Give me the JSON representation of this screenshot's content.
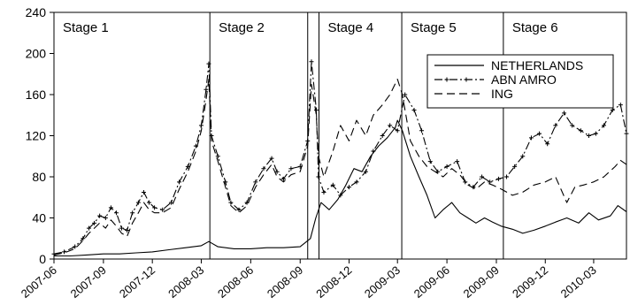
{
  "chart_data": {
    "type": "line",
    "title": "",
    "xlabel": "",
    "ylabel": "",
    "x_range": [
      "2007-06",
      "2010-05"
    ],
    "ylim": [
      0,
      240
    ],
    "y_ticks": [
      0,
      40,
      80,
      120,
      160,
      200,
      240
    ],
    "x_ticks": [
      "2007-06",
      "2007-09",
      "2007-12",
      "2008-03",
      "2008-06",
      "2008-09",
      "2008-12",
      "2009-03",
      "2009-06",
      "2009-09",
      "2009-12",
      "2010-03"
    ],
    "grid": false,
    "legend": {
      "position": "top-right",
      "entries": [
        "NETHERLANDS",
        "ABN AMRO",
        "ING"
      ]
    },
    "stages": [
      {
        "label": "Stage 1",
        "start": "2007-06",
        "end": "2008-03-17"
      },
      {
        "label": "Stage 2",
        "start": "2008-03-17",
        "end": "2008-09-15"
      },
      {
        "label": "",
        "start": "2008-09-15",
        "end": "2008-10-06"
      },
      {
        "label": "Stage 4",
        "start": "2008-10-06",
        "end": "2009-03-09"
      },
      {
        "label": "Stage 5",
        "start": "2009-03-09",
        "end": "2009-09-14"
      },
      {
        "label": "Stage 6",
        "start": "2009-09-14",
        "end": "2010-05"
      }
    ],
    "stage_boundaries": [
      "2008-03-17",
      "2008-09-15",
      "2008-10-06",
      "2009-03-09",
      "2009-09-14"
    ],
    "series": [
      {
        "name": "NETHERLANDS",
        "style": "solid",
        "points": [
          [
            "2007-06-01",
            3
          ],
          [
            "2007-07-01",
            3
          ],
          [
            "2007-08-01",
            4
          ],
          [
            "2007-09-01",
            5
          ],
          [
            "2007-10-01",
            5
          ],
          [
            "2007-11-01",
            6
          ],
          [
            "2007-12-01",
            7
          ],
          [
            "2008-01-01",
            9
          ],
          [
            "2008-02-01",
            11
          ],
          [
            "2008-03-01",
            13
          ],
          [
            "2008-03-15",
            17
          ],
          [
            "2008-04-01",
            12
          ],
          [
            "2008-05-01",
            10
          ],
          [
            "2008-06-01",
            10
          ],
          [
            "2008-07-01",
            11
          ],
          [
            "2008-08-01",
            11
          ],
          [
            "2008-09-01",
            12
          ],
          [
            "2008-09-20",
            20
          ],
          [
            "2008-09-30",
            40
          ],
          [
            "2008-10-10",
            55
          ],
          [
            "2008-10-25",
            48
          ],
          [
            "2008-11-10",
            58
          ],
          [
            "2008-11-25",
            72
          ],
          [
            "2008-12-10",
            88
          ],
          [
            "2008-12-25",
            85
          ],
          [
            "2009-01-10",
            100
          ],
          [
            "2009-01-25",
            110
          ],
          [
            "2009-02-10",
            118
          ],
          [
            "2009-02-25",
            128
          ],
          [
            "2009-03-01",
            135
          ],
          [
            "2009-03-10",
            125
          ],
          [
            "2009-03-25",
            100
          ],
          [
            "2009-04-10",
            80
          ],
          [
            "2009-04-25",
            62
          ],
          [
            "2009-05-10",
            40
          ],
          [
            "2009-05-25",
            48
          ],
          [
            "2009-06-10",
            55
          ],
          [
            "2009-06-25",
            45
          ],
          [
            "2009-07-10",
            40
          ],
          [
            "2009-07-25",
            35
          ],
          [
            "2009-08-10",
            40
          ],
          [
            "2009-08-25",
            36
          ],
          [
            "2009-09-10",
            32
          ],
          [
            "2009-10-01",
            29
          ],
          [
            "2009-10-20",
            25
          ],
          [
            "2009-11-10",
            28
          ],
          [
            "2009-12-01",
            32
          ],
          [
            "2009-12-20",
            36
          ],
          [
            "2010-01-10",
            40
          ],
          [
            "2010-02-01",
            35
          ],
          [
            "2010-02-20",
            45
          ],
          [
            "2010-03-10",
            38
          ],
          [
            "2010-04-01",
            42
          ],
          [
            "2010-04-15",
            52
          ],
          [
            "2010-05-01",
            46
          ]
        ]
      },
      {
        "name": "ABN AMRO",
        "style": "dash-dot-marker",
        "points": [
          [
            "2007-06-01",
            5
          ],
          [
            "2007-06-20",
            7
          ],
          [
            "2007-07-10",
            12
          ],
          [
            "2007-07-25",
            20
          ],
          [
            "2007-08-05",
            30
          ],
          [
            "2007-08-15",
            35
          ],
          [
            "2007-08-25",
            42
          ],
          [
            "2007-09-05",
            40
          ],
          [
            "2007-09-15",
            50
          ],
          [
            "2007-09-25",
            45
          ],
          [
            "2007-10-05",
            30
          ],
          [
            "2007-10-15",
            28
          ],
          [
            "2007-10-25",
            45
          ],
          [
            "2007-11-05",
            55
          ],
          [
            "2007-11-15",
            65
          ],
          [
            "2007-11-25",
            55
          ],
          [
            "2007-12-05",
            50
          ],
          [
            "2007-12-20",
            48
          ],
          [
            "2008-01-05",
            55
          ],
          [
            "2008-01-20",
            75
          ],
          [
            "2008-02-05",
            90
          ],
          [
            "2008-02-20",
            110
          ],
          [
            "2008-03-01",
            130
          ],
          [
            "2008-03-10",
            165
          ],
          [
            "2008-03-15",
            190
          ],
          [
            "2008-03-20",
            120
          ],
          [
            "2008-04-01",
            100
          ],
          [
            "2008-04-15",
            75
          ],
          [
            "2008-04-25",
            55
          ],
          [
            "2008-05-10",
            48
          ],
          [
            "2008-05-25",
            55
          ],
          [
            "2008-06-10",
            75
          ],
          [
            "2008-06-25",
            88
          ],
          [
            "2008-07-10",
            98
          ],
          [
            "2008-07-20",
            85
          ],
          [
            "2008-08-01",
            78
          ],
          [
            "2008-08-15",
            88
          ],
          [
            "2008-09-01",
            90
          ],
          [
            "2008-09-15",
            115
          ],
          [
            "2008-09-22",
            192
          ],
          [
            "2008-10-01",
            145
          ],
          [
            "2008-10-05",
            80
          ],
          [
            "2008-10-15",
            65
          ],
          [
            "2008-11-01",
            72
          ],
          [
            "2008-11-15",
            62
          ],
          [
            "2008-12-01",
            70
          ],
          [
            "2008-12-15",
            75
          ],
          [
            "2009-01-01",
            85
          ],
          [
            "2009-01-15",
            105
          ],
          [
            "2009-02-01",
            120
          ],
          [
            "2009-02-15",
            130
          ],
          [
            "2009-03-01",
            125
          ],
          [
            "2009-03-15",
            160
          ],
          [
            "2009-04-01",
            145
          ],
          [
            "2009-04-15",
            125
          ],
          [
            "2009-05-01",
            95
          ],
          [
            "2009-05-15",
            85
          ],
          [
            "2009-06-01",
            90
          ],
          [
            "2009-06-20",
            95
          ],
          [
            "2009-07-05",
            75
          ],
          [
            "2009-07-20",
            70
          ],
          [
            "2009-08-05",
            80
          ],
          [
            "2009-08-20",
            75
          ],
          [
            "2009-09-05",
            78
          ],
          [
            "2009-09-20",
            80
          ],
          [
            "2009-10-05",
            90
          ],
          [
            "2009-10-20",
            100
          ],
          [
            "2009-11-05",
            118
          ],
          [
            "2009-11-20",
            122
          ],
          [
            "2009-12-05",
            112
          ],
          [
            "2009-12-20",
            130
          ],
          [
            "2010-01-05",
            142
          ],
          [
            "2010-01-20",
            130
          ],
          [
            "2010-02-05",
            125
          ],
          [
            "2010-02-20",
            120
          ],
          [
            "2010-03-05",
            122
          ],
          [
            "2010-03-20",
            130
          ],
          [
            "2010-04-05",
            145
          ],
          [
            "2010-04-20",
            150
          ],
          [
            "2010-05-01",
            122
          ]
        ]
      },
      {
        "name": "ING",
        "style": "dashed",
        "points": [
          [
            "2007-06-01",
            4
          ],
          [
            "2007-06-20",
            6
          ],
          [
            "2007-07-10",
            10
          ],
          [
            "2007-07-25",
            18
          ],
          [
            "2007-08-05",
            25
          ],
          [
            "2007-08-15",
            30
          ],
          [
            "2007-08-25",
            35
          ],
          [
            "2007-09-05",
            30
          ],
          [
            "2007-09-15",
            38
          ],
          [
            "2007-09-25",
            32
          ],
          [
            "2007-10-05",
            25
          ],
          [
            "2007-10-15",
            22
          ],
          [
            "2007-10-25",
            35
          ],
          [
            "2007-11-05",
            45
          ],
          [
            "2007-11-15",
            55
          ],
          [
            "2007-11-25",
            48
          ],
          [
            "2007-12-05",
            45
          ],
          [
            "2007-12-20",
            45
          ],
          [
            "2008-01-05",
            50
          ],
          [
            "2008-01-20",
            68
          ],
          [
            "2008-02-05",
            85
          ],
          [
            "2008-02-20",
            105
          ],
          [
            "2008-03-01",
            125
          ],
          [
            "2008-03-10",
            155
          ],
          [
            "2008-03-15",
            175
          ],
          [
            "2008-03-20",
            115
          ],
          [
            "2008-04-01",
            95
          ],
          [
            "2008-04-15",
            70
          ],
          [
            "2008-04-25",
            52
          ],
          [
            "2008-05-10",
            45
          ],
          [
            "2008-05-25",
            52
          ],
          [
            "2008-06-10",
            70
          ],
          [
            "2008-06-25",
            82
          ],
          [
            "2008-07-10",
            92
          ],
          [
            "2008-07-20",
            80
          ],
          [
            "2008-08-01",
            75
          ],
          [
            "2008-08-15",
            82
          ],
          [
            "2008-09-01",
            85
          ],
          [
            "2008-09-15",
            110
          ],
          [
            "2008-09-22",
            170
          ],
          [
            "2008-10-01",
            140
          ],
          [
            "2008-10-05",
            100
          ],
          [
            "2008-10-15",
            80
          ],
          [
            "2008-11-01",
            105
          ],
          [
            "2008-11-15",
            130
          ],
          [
            "2008-12-01",
            115
          ],
          [
            "2008-12-15",
            135
          ],
          [
            "2009-01-01",
            120
          ],
          [
            "2009-01-15",
            140
          ],
          [
            "2009-02-01",
            150
          ],
          [
            "2009-02-15",
            160
          ],
          [
            "2009-03-01",
            175
          ],
          [
            "2009-03-10",
            160
          ],
          [
            "2009-03-25",
            115
          ],
          [
            "2009-04-10",
            100
          ],
          [
            "2009-04-25",
            90
          ],
          [
            "2009-05-10",
            85
          ],
          [
            "2009-05-25",
            80
          ],
          [
            "2009-06-10",
            88
          ],
          [
            "2009-06-25",
            82
          ],
          [
            "2009-07-10",
            72
          ],
          [
            "2009-07-25",
            68
          ],
          [
            "2009-08-10",
            75
          ],
          [
            "2009-08-25",
            72
          ],
          [
            "2009-09-10",
            68
          ],
          [
            "2009-10-01",
            62
          ],
          [
            "2009-10-20",
            65
          ],
          [
            "2009-11-10",
            72
          ],
          [
            "2009-12-01",
            75
          ],
          [
            "2009-12-20",
            80
          ],
          [
            "2010-01-10",
            55
          ],
          [
            "2010-01-25",
            70
          ],
          [
            "2010-02-10",
            72
          ],
          [
            "2010-03-01",
            75
          ],
          [
            "2010-03-20",
            80
          ],
          [
            "2010-04-10",
            90
          ],
          [
            "2010-04-20",
            96
          ],
          [
            "2010-05-01",
            92
          ]
        ]
      }
    ]
  }
}
